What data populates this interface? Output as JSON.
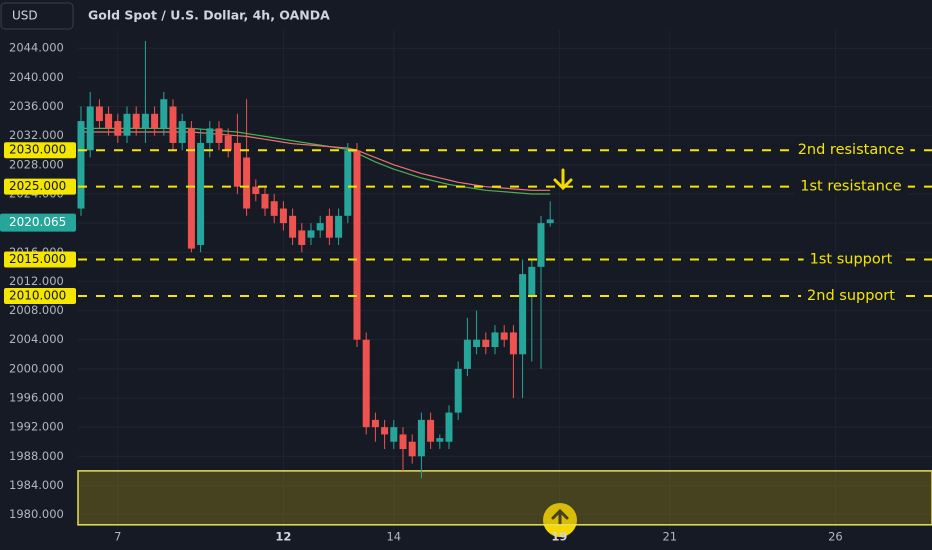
{
  "header": {
    "currency": "USD"
  },
  "chart_data": {
    "type": "candlestick",
    "title": "Gold Spot / U.S. Dollar, 4h, OANDA",
    "categories": [
      null,
      null,
      null,
      null,
      "7",
      null,
      null,
      null,
      null,
      null,
      null,
      null,
      null,
      null,
      null,
      null,
      null,
      null,
      null,
      null,
      null,
      null,
      "12",
      null,
      null,
      null,
      null,
      null,
      null,
      null,
      null,
      null,
      null,
      null,
      "14",
      null,
      null,
      null,
      null,
      null,
      null,
      null,
      null,
      null,
      null,
      null,
      null,
      null,
      null,
      null,
      null,
      null,
      "19",
      null,
      null,
      null,
      null,
      null,
      null,
      null,
      null,
      null,
      null,
      null,
      "21",
      null,
      null,
      null,
      null,
      null,
      null,
      null,
      null,
      null,
      null,
      null,
      null,
      null,
      null,
      null,
      null,
      null,
      "26",
      null,
      null,
      null,
      null,
      null,
      null,
      null,
      null
    ],
    "open": [
      2022,
      2030,
      2036,
      2035,
      2034,
      2032,
      2035,
      2033,
      2035,
      2033,
      2036,
      2031,
      2033,
      2017,
      2031,
      2033,
      2032,
      2031,
      2029,
      2025,
      2024,
      2023,
      2022,
      2021,
      2019,
      2018,
      2019,
      2021,
      2018,
      2021,
      2030,
      2004,
      1993,
      1992,
      1990,
      1991,
      1990,
      1988,
      1993,
      1990,
      1990,
      1994,
      2000,
      2003,
      2004,
      2003,
      2005,
      2005,
      2002,
      2010,
      2014,
      2020,
      null,
      null,
      null,
      null,
      null,
      null,
      null,
      null,
      null,
      null,
      null,
      null,
      null,
      null,
      null,
      null,
      null,
      null,
      null,
      null,
      null,
      null,
      null,
      null,
      null,
      null,
      null,
      null,
      null,
      null,
      null,
      null,
      null,
      null,
      null,
      null,
      null,
      null,
      null
    ],
    "high": [
      2036,
      2038,
      2037,
      2036,
      2035,
      2036,
      2036,
      2045,
      2036,
      2038,
      2037,
      2035,
      2034,
      2033,
      2034,
      2034,
      2033,
      2035,
      2037,
      2026,
      2025,
      2024,
      2023,
      2022,
      2020,
      2020,
      2021,
      2022,
      2022,
      2031,
      2031,
      2005,
      1994,
      1993,
      1993,
      1992,
      1991,
      1994,
      1994,
      1991,
      1995,
      2001,
      2007,
      2008,
      2005,
      2006,
      2006,
      2006,
      2015,
      2015,
      2021,
      2023,
      null,
      null,
      null,
      null,
      null,
      null,
      null,
      null,
      null,
      null,
      null,
      null,
      null,
      null,
      null,
      null,
      null,
      null,
      null,
      null,
      null,
      null,
      null,
      null,
      null,
      null,
      null,
      null,
      null,
      null,
      null,
      null,
      null,
      null,
      null,
      null,
      null,
      null,
      null
    ],
    "low": [
      2021,
      2029,
      2033,
      2032,
      2031,
      2031,
      2032,
      2031,
      2032,
      2032,
      2030,
      2030,
      2016,
      2016,
      2029,
      2030,
      2029,
      2024,
      2021,
      2023,
      2021,
      2020,
      2019,
      2017,
      2016,
      2017,
      2018,
      2017,
      2017,
      2020,
      2003,
      1991,
      1990,
      1989,
      1989,
      1986,
      1987,
      1985,
      1989,
      1989,
      1989,
      1993,
      1999,
      2002,
      2002,
      2002,
      2003,
      1996,
      1996,
      2001,
      2000,
      2019.5,
      null,
      null,
      null,
      null,
      null,
      null,
      null,
      null,
      null,
      null,
      null,
      null,
      null,
      null,
      null,
      null,
      null,
      null,
      null,
      null,
      null,
      null,
      null,
      null,
      null,
      null,
      null,
      null,
      null,
      null,
      null,
      null,
      null,
      null,
      null,
      null,
      null,
      null,
      null
    ],
    "close": [
      2034,
      2036,
      2034,
      2033,
      2032,
      2035,
      2033,
      2035,
      2033,
      2037,
      2031,
      2034,
      2016.5,
      2031,
      2033,
      2031,
      2030,
      2025,
      2022,
      2024,
      2022,
      2021,
      2020,
      2018,
      2017,
      2019,
      2020,
      2018,
      2021,
      2030,
      2004,
      1992,
      1992,
      1991,
      1992,
      1989,
      1988,
      1993,
      1990,
      1990.5,
      1994,
      2000,
      2004,
      2004,
      2003,
      2005,
      2004,
      2002,
      2013,
      2014,
      2020,
      2020.5,
      null,
      null,
      null,
      null,
      null,
      null,
      null,
      null,
      null,
      null,
      null,
      null,
      null,
      null,
      null,
      null,
      null,
      null,
      null,
      null,
      null,
      null,
      null,
      null,
      null,
      null,
      null,
      null,
      null,
      null,
      null,
      null,
      null,
      null,
      null,
      null,
      null,
      null,
      null
    ],
    "up_color": "#26a69a",
    "down_color": "#ef5350",
    "lines": [
      {
        "color": "#4caf50",
        "values": [
          2033,
          2033,
          2033,
          2033,
          2033,
          2033,
          2033,
          2033,
          2033,
          2033,
          2033,
          2033,
          2033,
          2032.9,
          2032.8,
          2032.7,
          2032.6,
          2032.5,
          2032.3,
          2032.1,
          2031.9,
          2031.7,
          2031.5,
          2031.3,
          2031.1,
          2030.9,
          2030.7,
          2030.5,
          2030.3,
          2030.1,
          2029.6,
          2029,
          2028.4,
          2027.9,
          2027.4,
          2027,
          2026.6,
          2026.2,
          2025.9,
          2025.6,
          2025.3,
          2025.1,
          2024.9,
          2024.7,
          2024.5,
          2024.4,
          2024.3,
          2024.2,
          2024.1,
          2024,
          2024,
          2024,
          null,
          null,
          null,
          null,
          null,
          null,
          null,
          null,
          null,
          null,
          null,
          null,
          null,
          null,
          null,
          null,
          null,
          null,
          null,
          null,
          null,
          null,
          null,
          null,
          null,
          null,
          null,
          null,
          null,
          null,
          null,
          null,
          null,
          null,
          null,
          null,
          null,
          null,
          null
        ]
      },
      {
        "color": "#e57373",
        "values": [
          2032.5,
          2032.5,
          2032.5,
          2032.5,
          2032.5,
          2032.5,
          2032.5,
          2032.5,
          2032.5,
          2032.5,
          2032.5,
          2032.5,
          2032.5,
          2032.4,
          2032.3,
          2032.2,
          2032.1,
          2032,
          2031.9,
          2031.7,
          2031.5,
          2031.3,
          2031.1,
          2030.9,
          2030.8,
          2030.7,
          2030.6,
          2030.5,
          2030.4,
          2030.3,
          2030,
          2029.5,
          2029,
          2028.5,
          2028,
          2027.6,
          2027.2,
          2026.8,
          2026.5,
          2026.2,
          2025.9,
          2025.6,
          2025.4,
          2025.2,
          2025,
          2024.9,
          2024.8,
          2024.7,
          2024.6,
          2024.5,
          2024.5,
          2024.5,
          null,
          null,
          null,
          null,
          null,
          null,
          null,
          null,
          null,
          null,
          null,
          null,
          null,
          null,
          null,
          null,
          null,
          null,
          null,
          null,
          null,
          null,
          null,
          null,
          null,
          null,
          null,
          null,
          null,
          null,
          null,
          null,
          null,
          null,
          null,
          null,
          null,
          null,
          null
        ]
      }
    ],
    "ylim": [
      1978.3,
      2046.5
    ],
    "yticks": [
      {
        "value": 2044,
        "label": "2044.000"
      },
      {
        "value": 2040,
        "label": "2040.000"
      },
      {
        "value": 2036,
        "label": "2036.000"
      },
      {
        "value": 2032,
        "label": "2032.000"
      },
      {
        "value": 2028,
        "label": "2028.000"
      },
      {
        "value": 2024,
        "label": "2024.000"
      },
      {
        "value": 2020,
        "label": "2020.000"
      },
      {
        "value": 2016,
        "label": "2016.000"
      },
      {
        "value": 2012,
        "label": "2012.000"
      },
      {
        "value": 2008,
        "label": "2008.000"
      },
      {
        "value": 2004,
        "label": "2004.000"
      },
      {
        "value": 2000,
        "label": "2000.000"
      },
      {
        "value": 1996,
        "label": "1996.000"
      },
      {
        "value": 1992,
        "label": "1992.000"
      },
      {
        "value": 1988,
        "label": "1988.000"
      },
      {
        "value": 1984,
        "label": "1984.000"
      },
      {
        "value": 1980,
        "label": "1980.000"
      }
    ],
    "levels": [
      {
        "value": 2030,
        "label": "2030.000",
        "text": "2nd resistance"
      },
      {
        "value": 2025,
        "label": "2025.000",
        "text": "1st resistance"
      },
      {
        "value": 2015,
        "label": "2015.000",
        "text": "1st support"
      },
      {
        "value": 2010,
        "label": "2010.000",
        "text": "2nd support"
      }
    ],
    "last_price": {
      "value": 2020.065,
      "label": "2020.065"
    },
    "zone": [
      1986,
      1978.6
    ],
    "grid": true
  }
}
